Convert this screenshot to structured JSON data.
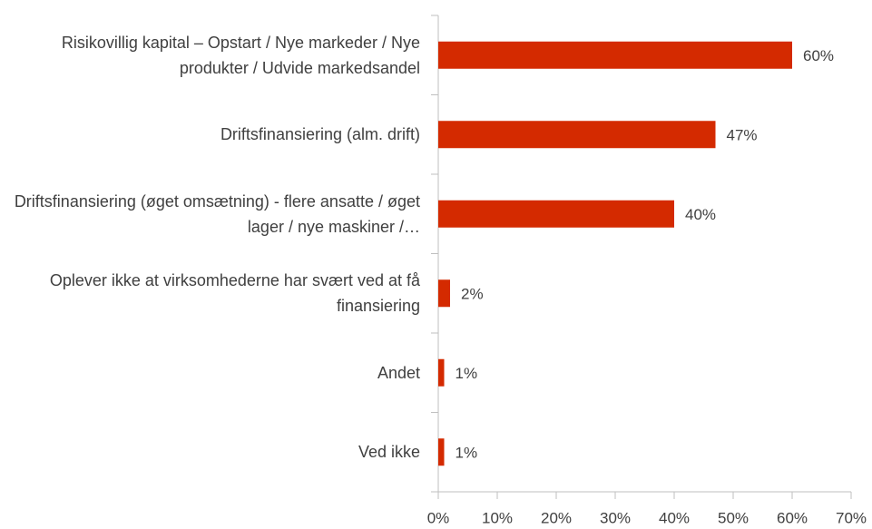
{
  "chart_data": {
    "type": "bar",
    "orientation": "horizontal",
    "categories": [
      "Risikovillig kapital – Opstart / Nye markeder / Nye produkter / Udvide markedsandel",
      "Driftsfinansiering (alm. drift)",
      "Driftsfinansiering (øget omsætning) - flere ansatte / øget lager / nye maskiner /…",
      "Oplever ikke at virksomhederne har svært ved at få finansiering",
      "Andet",
      "Ved ikke"
    ],
    "values": [
      60,
      47,
      40,
      2,
      1,
      1
    ],
    "value_labels": [
      "60%",
      "47%",
      "40%",
      "2%",
      "1%",
      "1%"
    ],
    "color": "#d42a00",
    "xlim": [
      0,
      70
    ],
    "xticks": [
      {
        "value": 0,
        "label": "0%"
      },
      {
        "value": 10,
        "label": "10%"
      },
      {
        "value": 20,
        "label": "20%"
      },
      {
        "value": 30,
        "label": "30%"
      },
      {
        "value": 40,
        "label": "40%"
      },
      {
        "value": 50,
        "label": "50%"
      },
      {
        "value": 60,
        "label": "60%"
      },
      {
        "value": 70,
        "label": "70%"
      }
    ],
    "grid": false
  }
}
